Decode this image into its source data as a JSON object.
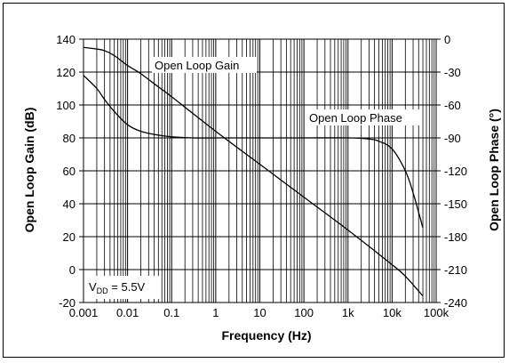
{
  "chart_data": {
    "type": "line",
    "x_scale": "log",
    "xlabel": "Frequency (Hz)",
    "ylabel_left": "Open Loop Gain (dB)",
    "ylabel_right": "Open Loop Phase (°)",
    "xlim": [
      0.001,
      100000
    ],
    "ylim_left": [
      -20,
      140
    ],
    "ylim_right": [
      -240,
      0
    ],
    "x_ticks": [
      {
        "value": 0.001,
        "label": "0.001"
      },
      {
        "value": 0.01,
        "label": "0.01"
      },
      {
        "value": 0.1,
        "label": "0.1"
      },
      {
        "value": 1,
        "label": "1"
      },
      {
        "value": 10,
        "label": "10"
      },
      {
        "value": 100,
        "label": "100"
      },
      {
        "value": 1000,
        "label": "1k"
      },
      {
        "value": 10000,
        "label": "10k"
      },
      {
        "value": 100000,
        "label": "100k"
      }
    ],
    "y_ticks_left": [
      "140",
      "120",
      "100",
      "80",
      "60",
      "40",
      "20",
      "0",
      "-20"
    ],
    "y_ticks_right": [
      "0",
      "-30",
      "-60",
      "-90",
      "-120",
      "-150",
      "-180",
      "-210",
      "-240"
    ],
    "grid": true,
    "series": [
      {
        "name": "Open Loop Gain",
        "axis": "left",
        "x": [
          0.001,
          0.002,
          0.003,
          0.005,
          0.01,
          0.02,
          0.05,
          0.1,
          1,
          10,
          100,
          1000,
          10000,
          20000,
          50000
        ],
        "y": [
          135,
          134,
          133,
          130,
          124,
          119,
          111,
          105,
          84,
          64,
          44,
          24,
          3,
          -4,
          -16
        ]
      },
      {
        "name": "Open Loop Phase",
        "axis": "right",
        "x": [
          0.001,
          0.002,
          0.003,
          0.005,
          0.01,
          0.02,
          0.05,
          0.1,
          0.3,
          1,
          10,
          100,
          1000,
          3000,
          5000,
          10000,
          20000,
          30000,
          50000
        ],
        "y": [
          -33,
          -45,
          -55,
          -66,
          -78,
          -84,
          -87.5,
          -89,
          -90,
          -90,
          -90,
          -90,
          -90,
          -91,
          -93,
          -100,
          -120,
          -140,
          -172
        ]
      }
    ],
    "annotations": {
      "gain_label": "Open Loop Gain",
      "phase_label": "Open Loop Phase",
      "vdd_prefix": "V",
      "vdd_sub": "DD",
      "vdd_value": " = 5.5V"
    }
  }
}
